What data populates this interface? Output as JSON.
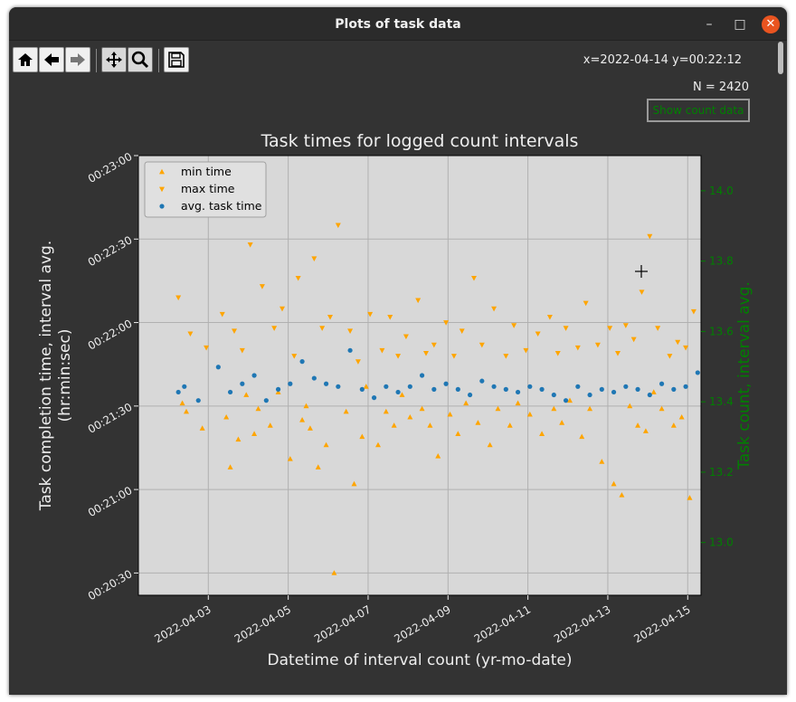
{
  "window": {
    "title": "Plots of task data"
  },
  "window_controls": {
    "minimize": "–",
    "maximize": "□",
    "close": "✕"
  },
  "toolbar": {
    "buttons": [
      {
        "name": "home-button",
        "icon": "home-icon"
      },
      {
        "name": "back-button",
        "icon": "arrow-left-icon"
      },
      {
        "name": "forward-button",
        "icon": "arrow-right-icon"
      },
      {
        "name": "pan-button",
        "icon": "move-icon",
        "active": true
      },
      {
        "name": "zoom-button",
        "icon": "magnifier-icon",
        "active": true
      },
      {
        "name": "save-button",
        "icon": "floppy-disk-icon"
      }
    ],
    "coords": "x=2022-04-14 y=00:22:12"
  },
  "info": {
    "n_label": "N = 2420",
    "show_count_label": "Show count data",
    "show_count_color": "#008000"
  },
  "chart_data": {
    "type": "scatter",
    "title": "Task times for logged count intervals",
    "xlabel": "Datetime of interval count (yr-mo-date)",
    "ylabel": "Task completion time, interval avg.\n(hr:min:sec)",
    "y2label": "Task count, interval avg.",
    "x_ticks": [
      "2022-04-03",
      "2022-04-05",
      "2022-04-07",
      "2022-04-09",
      "2022-04-11",
      "2022-04-13",
      "2022-04-15"
    ],
    "xlim": [
      "2022-04-01T06:00",
      "2022-04-15T08:00"
    ],
    "y_ticks": [
      "00:20:30",
      "00:21:00",
      "00:21:30",
      "00:22:00",
      "00:22:30",
      "00:23:00"
    ],
    "ylim_seconds": [
      1222,
      1380
    ],
    "y2_ticks": [
      "13.0",
      "13.2",
      "13.4",
      "13.6",
      "13.8",
      "14.0"
    ],
    "y2lim": [
      12.85,
      14.1
    ],
    "grid": true,
    "legend_position": "top-left",
    "colors": {
      "min": "#ffa500",
      "max": "#ffa500",
      "avg": "#1f77b4",
      "y2": "#008000"
    },
    "series": [
      {
        "name": "min time",
        "marker": "triangle-up",
        "day": [
          0.1,
          0.2,
          0.6,
          1.2,
          1.3,
          1.5,
          1.7,
          1.9,
          2.0,
          2.3,
          2.5,
          2.8,
          3.1,
          3.2,
          3.3,
          3.5,
          3.7,
          3.9,
          4.2,
          4.4,
          4.6,
          4.7,
          5.0,
          5.2,
          5.4,
          5.6,
          5.8,
          6.1,
          6.3,
          6.5,
          6.8,
          7.0,
          7.2,
          7.5,
          7.8,
          8.0,
          8.3,
          8.5,
          8.8,
          9.1,
          9.4,
          9.6,
          9.8,
          10.1,
          10.3,
          10.6,
          10.9,
          11.1,
          11.3,
          11.5,
          11.7,
          11.9,
          12.1,
          12.4,
          12.6,
          12.8,
          13.1,
          13.3,
          13.5,
          13.7,
          13.9,
          14.1
        ],
        "seconds": [
          1291,
          1288,
          1282,
          1286,
          1268,
          1278,
          1294,
          1280,
          1289,
          1283,
          1295,
          1271,
          1285,
          1290,
          1282,
          1268,
          1276,
          1230,
          1288,
          1262,
          1279,
          1297,
          1276,
          1288,
          1283,
          1294,
          1286,
          1289,
          1283,
          1272,
          1287,
          1280,
          1291,
          1284,
          1276,
          1289,
          1283,
          1291,
          1287,
          1280,
          1289,
          1284,
          1292,
          1279,
          1289,
          1270,
          1262,
          1258,
          1290,
          1283,
          1281,
          1295,
          1289,
          1283,
          1286,
          1257,
          1239,
          1243,
          1248,
          1261,
          1271,
          1286
        ]
      },
      {
        "name": "max time",
        "marker": "triangle-down",
        "day": [
          0.0,
          0.3,
          0.7,
          1.1,
          1.4,
          1.6,
          1.8,
          2.1,
          2.4,
          2.6,
          2.9,
          3.0,
          3.4,
          3.6,
          3.8,
          4.0,
          4.3,
          4.5,
          4.8,
          5.1,
          5.3,
          5.5,
          5.7,
          6.0,
          6.2,
          6.4,
          6.7,
          6.9,
          7.1,
          7.4,
          7.6,
          7.9,
          8.2,
          8.4,
          8.7,
          9.0,
          9.3,
          9.5,
          9.7,
          10.0,
          10.2,
          10.5,
          10.8,
          11.0,
          11.2,
          11.4,
          11.6,
          11.8,
          12.0,
          12.3,
          12.5,
          12.7,
          12.9,
          13.2,
          13.4,
          13.6,
          13.8,
          14.0
        ],
        "seconds": [
          1329,
          1316,
          1311,
          1323,
          1317,
          1310,
          1348,
          1333,
          1318,
          1325,
          1308,
          1336,
          1343,
          1318,
          1322,
          1355,
          1317,
          1306,
          1323,
          1310,
          1322,
          1308,
          1315,
          1328,
          1309,
          1312,
          1320,
          1308,
          1317,
          1336,
          1312,
          1325,
          1308,
          1319,
          1310,
          1316,
          1322,
          1309,
          1318,
          1311,
          1327,
          1312,
          1318,
          1309,
          1319,
          1314,
          1331,
          1351,
          1318,
          1308,
          1313,
          1311,
          1324,
          1309,
          1314,
          1353,
          1331,
          1316
        ]
      },
      {
        "name": "avg. task time",
        "marker": "circle",
        "day": [
          0.0,
          0.15,
          0.5,
          1.0,
          1.3,
          1.6,
          1.9,
          2.2,
          2.5,
          2.8,
          3.1,
          3.4,
          3.7,
          4.0,
          4.3,
          4.6,
          4.9,
          5.2,
          5.5,
          5.8,
          6.1,
          6.4,
          6.7,
          7.0,
          7.3,
          7.6,
          7.9,
          8.2,
          8.5,
          8.8,
          9.1,
          9.4,
          9.7,
          10.0,
          10.3,
          10.6,
          10.9,
          11.2,
          11.5,
          11.8,
          12.1,
          12.4,
          12.7,
          13.0,
          13.3,
          13.6,
          13.9,
          14.1
        ],
        "seconds": [
          1295,
          1297,
          1292,
          1304,
          1295,
          1298,
          1301,
          1292,
          1296,
          1298,
          1306,
          1300,
          1298,
          1297,
          1310,
          1296,
          1293,
          1297,
          1295,
          1297,
          1301,
          1296,
          1298,
          1296,
          1294,
          1299,
          1297,
          1296,
          1295,
          1297,
          1296,
          1294,
          1292,
          1297,
          1294,
          1296,
          1295,
          1297,
          1296,
          1294,
          1298,
          1296,
          1297,
          1302,
          1296,
          1297,
          1299,
          1292
        ]
      }
    ]
  }
}
